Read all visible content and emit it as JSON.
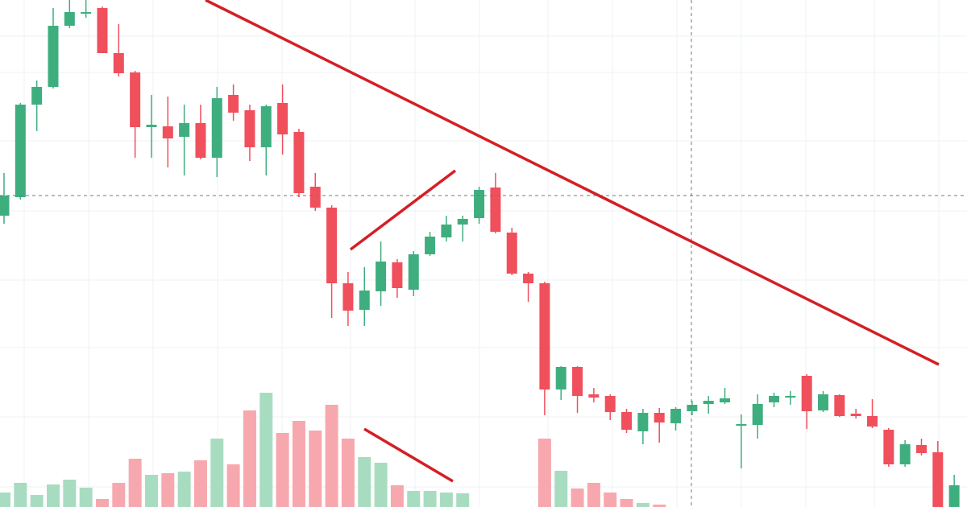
{
  "chart_data": {
    "type": "candlestick",
    "ylim": [
      0,
      630
    ],
    "up_color": "#3fae7f",
    "down_color": "#f04f5c",
    "volume_up_color": "#a8dcc0",
    "volume_down_color": "#f7a8ae",
    "open": [
      362,
      385,
      500,
      522,
      598,
      613,
      620,
      564,
      540,
      472,
      473,
      460,
      477,
      434,
      512,
      493,
      447,
      502,
      466,
      398,
      372,
      278,
      245,
      268,
      304,
      270,
      314,
      335,
      351,
      359,
      397,
      341,
      290,
      278,
      146,
      174,
      140,
      138,
      118,
      94,
      117,
      104,
      119,
      128,
      130,
      101,
      102,
      130,
      136,
      163,
      120,
      139,
      116,
      113,
      96,
      53,
      77,
      68,
      0
    ],
    "high": [
      415,
      502,
      530,
      620,
      630,
      630,
      622,
      600,
      542,
      512,
      510,
      500,
      500,
      522,
      525,
      500,
      500,
      525,
      470,
      415,
      375,
      292,
      298,
      330,
      308,
      318,
      342,
      362,
      362,
      398,
      415,
      347,
      292,
      280,
      175,
      175,
      148,
      140,
      122,
      122,
      123,
      124,
      132,
      138,
      148,
      115,
      140,
      142,
      144,
      165,
      144,
      140,
      122,
      134,
      98,
      83,
      85,
      82,
      40
    ],
    "low": [
      352,
      382,
      467,
      520,
      595,
      608,
      564,
      535,
      434,
      434,
      422,
      412,
      432,
      410,
      480,
      430,
      412,
      438,
      385,
      368,
      235,
      225,
      225,
      250,
      260,
      262,
      312,
      330,
      330,
      352,
      340,
      288,
      255,
      114,
      133,
      117,
      130,
      108,
      92,
      78,
      80,
      95,
      114,
      116,
      128,
      48,
      85,
      124,
      127,
      97,
      118,
      112,
      110,
      98,
      50,
      50,
      64,
      0,
      0
    ],
    "close": [
      387,
      500,
      522,
      598,
      615,
      615,
      564,
      539,
      472,
      475,
      458,
      477,
      434,
      508,
      490,
      447,
      498,
      463,
      390,
      372,
      278,
      244,
      269,
      305,
      272,
      314,
      336,
      351,
      358,
      394,
      342,
      290,
      278,
      146,
      174,
      138,
      136,
      118,
      96,
      117,
      105,
      122,
      127,
      132,
      135,
      103,
      128,
      138,
      138,
      119,
      140,
      113,
      113,
      100,
      53,
      78,
      67,
      0,
      27
    ],
    "volume": [
      18,
      30,
      15,
      28,
      34,
      24,
      10,
      30,
      60,
      40,
      42,
      44,
      58,
      85,
      53,
      120,
      142,
      92,
      107,
      95,
      127,
      85,
      62,
      55,
      27,
      20,
      20,
      18,
      17,
      null,
      null,
      null,
      null,
      85,
      45,
      23,
      30,
      18,
      10,
      5,
      3,
      null,
      null,
      null,
      null,
      null,
      null,
      null,
      null,
      null,
      null,
      null,
      null,
      null,
      null,
      null,
      null,
      null,
      null
    ]
  }
}
